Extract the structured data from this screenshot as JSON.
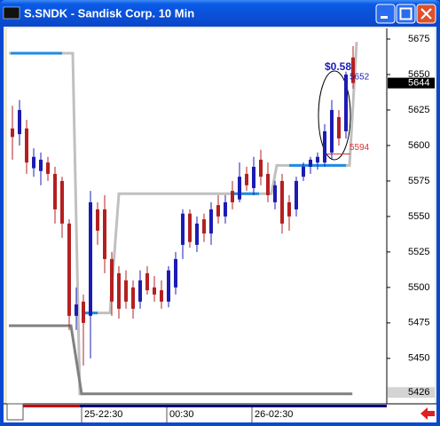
{
  "chart_data": {
    "type": "candlestick",
    "title": "S.SNDK - Sandisk Corp. 10 Min",
    "categories": [
      null,
      null,
      null,
      null,
      null,
      null,
      null,
      null,
      null,
      null,
      "25-22:30",
      null,
      null,
      null,
      null,
      null,
      null,
      null,
      null,
      null,
      null,
      null,
      "00:30",
      null,
      null,
      null,
      null,
      null,
      null,
      null,
      null,
      null,
      null,
      null,
      "26-02:30",
      null,
      null,
      null,
      null,
      null,
      null,
      null,
      null,
      null,
      null,
      null,
      null,
      null,
      null
    ],
    "open": [
      5612,
      5608,
      5612,
      5584,
      5582,
      5588,
      5580,
      5575,
      5545,
      5480,
      5490,
      5480,
      5555,
      5555,
      5520,
      5510,
      5505,
      5500,
      5490,
      5510,
      5500,
      5498,
      5490,
      5500,
      5530,
      5552,
      5530,
      5548,
      5538,
      5558,
      5550,
      5568,
      5562,
      5580,
      5570,
      5590,
      5580,
      5560,
      5575,
      5560,
      5555,
      5578,
      5585,
      5588,
      5588,
      5595,
      5620,
      5610,
      5662
    ],
    "high": [
      5628,
      5632,
      5618,
      5598,
      5595,
      5592,
      5585,
      5578,
      5548,
      5500,
      5495,
      5568,
      5560,
      5565,
      5525,
      5515,
      5512,
      5505,
      5512,
      5515,
      5508,
      5505,
      5515,
      5525,
      5555,
      5555,
      5550,
      5552,
      5560,
      5565,
      5565,
      5575,
      5588,
      5585,
      5592,
      5597,
      5588,
      5575,
      5580,
      5565,
      5578,
      5588,
      5592,
      5595,
      5615,
      5632,
      5625,
      5652,
      5670
    ],
    "low": [
      5590,
      5600,
      5580,
      5578,
      5572,
      5575,
      5545,
      5535,
      5470,
      5470,
      5445,
      5450,
      5530,
      5510,
      5480,
      5478,
      5485,
      5478,
      5485,
      5495,
      5490,
      5485,
      5486,
      5495,
      5520,
      5528,
      5525,
      5532,
      5530,
      5545,
      5545,
      5555,
      5560,
      5568,
      5565,
      5572,
      5560,
      5555,
      5538,
      5540,
      5550,
      5575,
      5580,
      5583,
      5585,
      5590,
      5600,
      5605,
      5640
    ],
    "close": [
      5606,
      5625,
      5588,
      5592,
      5590,
      5580,
      5555,
      5545,
      5480,
      5488,
      5475,
      5560,
      5540,
      5520,
      5490,
      5485,
      5490,
      5485,
      5505,
      5498,
      5495,
      5490,
      5512,
      5520,
      5552,
      5532,
      5545,
      5538,
      5555,
      5550,
      5560,
      5560,
      5578,
      5572,
      5585,
      5578,
      5565,
      5572,
      5545,
      5550,
      5575,
      5585,
      5590,
      5592,
      5610,
      5625,
      5605,
      5650,
      5644
    ],
    "up_color": "#1c1cb4",
    "down_color": "#b42020",
    "ylim": [
      5418,
      5682.5
    ],
    "yticks": [
      5450,
      5475,
      5500,
      5525,
      5550,
      5575,
      5600,
      5625,
      5650,
      5675
    ],
    "price_markers": [
      5644,
      5426
    ],
    "stop_lines": [
      {
        "color": "#c0c0c0",
        "points": [
          [
            -0.5,
            5665
          ],
          [
            8.5,
            5665
          ],
          [
            9.5,
            5424
          ]
        ]
      },
      {
        "color": "#c0c0c0",
        "points": [
          [
            9.75,
            5482
          ],
          [
            13.75,
            5482
          ],
          [
            15,
            5566
          ],
          [
            36.5,
            5566
          ],
          [
            37.25,
            5586
          ],
          [
            47.5,
            5586
          ],
          [
            48.5,
            5673
          ]
        ]
      },
      {
        "color": "#808080",
        "points": [
          [
            -0.5,
            5473
          ],
          [
            8.25,
            5473
          ],
          [
            9.75,
            5425
          ],
          [
            47.9,
            5425
          ]
        ]
      }
    ],
    "blue_segments": {
      "color": "#1e8ce6",
      "items": [
        [
          -0.25,
          7,
          5665
        ],
        [
          9.75,
          12,
          5482
        ],
        [
          31,
          34.75,
          5566
        ],
        [
          39,
          47,
          5586
        ]
      ]
    },
    "red_level": {
      "color": "#e03030",
      "value": 5594,
      "from": 43.9,
      "to": 47.6
    },
    "high_level": {
      "color": "#1c1cb4",
      "value": 5652
    },
    "annotation": "$0.58"
  }
}
